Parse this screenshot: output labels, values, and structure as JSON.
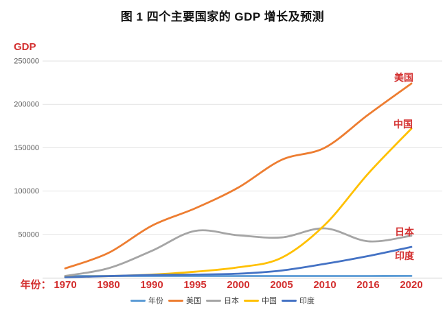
{
  "title": "图 1 四个主要国家的 GDP 增长及预测",
  "chart_data": {
    "type": "line",
    "title": "图 1 四个主要国家的 GDP 增长及预测",
    "y_axis_label": "GDP",
    "x_axis_prefix_label": "年份：",
    "categories": [
      "1970",
      "1980",
      "1990",
      "1995",
      "2000",
      "2005",
      "2010",
      "2016",
      "2020"
    ],
    "y_ticks": [
      50000,
      100000,
      150000,
      200000,
      250000
    ],
    "ylim": [
      0,
      265000
    ],
    "grid": true,
    "legend_position": "bottom",
    "series": [
      {
        "name": "年份",
        "color": "#5B9BD5",
        "values": [
          1970,
          1980,
          1990,
          1995,
          2000,
          2005,
          2010,
          2016,
          2020
        ]
      },
      {
        "name": "美国",
        "color": "#ED7D31",
        "values": [
          10800,
          28600,
          60000,
          80000,
          104000,
          136000,
          150000,
          188000,
          224000
        ]
      },
      {
        "name": "日本",
        "color": "#A5A5A5",
        "values": [
          2100,
          11000,
          31000,
          54000,
          49000,
          46500,
          57000,
          42000,
          48500
        ]
      },
      {
        "name": "中国",
        "color": "#FFC000",
        "values": [
          900,
          1900,
          3600,
          7000,
          12000,
          23000,
          61000,
          120000,
          172000
        ]
      },
      {
        "name": "印度",
        "color": "#4472C4",
        "values": [
          600,
          1860,
          3200,
          3600,
          4700,
          8300,
          16000,
          25000,
          35500
        ]
      }
    ],
    "annotations": [
      {
        "text": "美国",
        "x": 588,
        "y": 118
      },
      {
        "text": "中国",
        "x": 587,
        "y": 186
      },
      {
        "text": "日本",
        "x": 589,
        "y": 343
      },
      {
        "text": "印度",
        "x": 589,
        "y": 378
      }
    ]
  },
  "colors": {
    "red_text": "#D32F2F",
    "title_text": "#111111",
    "tick_text": "#595959",
    "legend_text": "#404040",
    "gridline": "#E2E2E2",
    "axis_line": "#D9D9D9",
    "background": "#FFFFFF"
  }
}
